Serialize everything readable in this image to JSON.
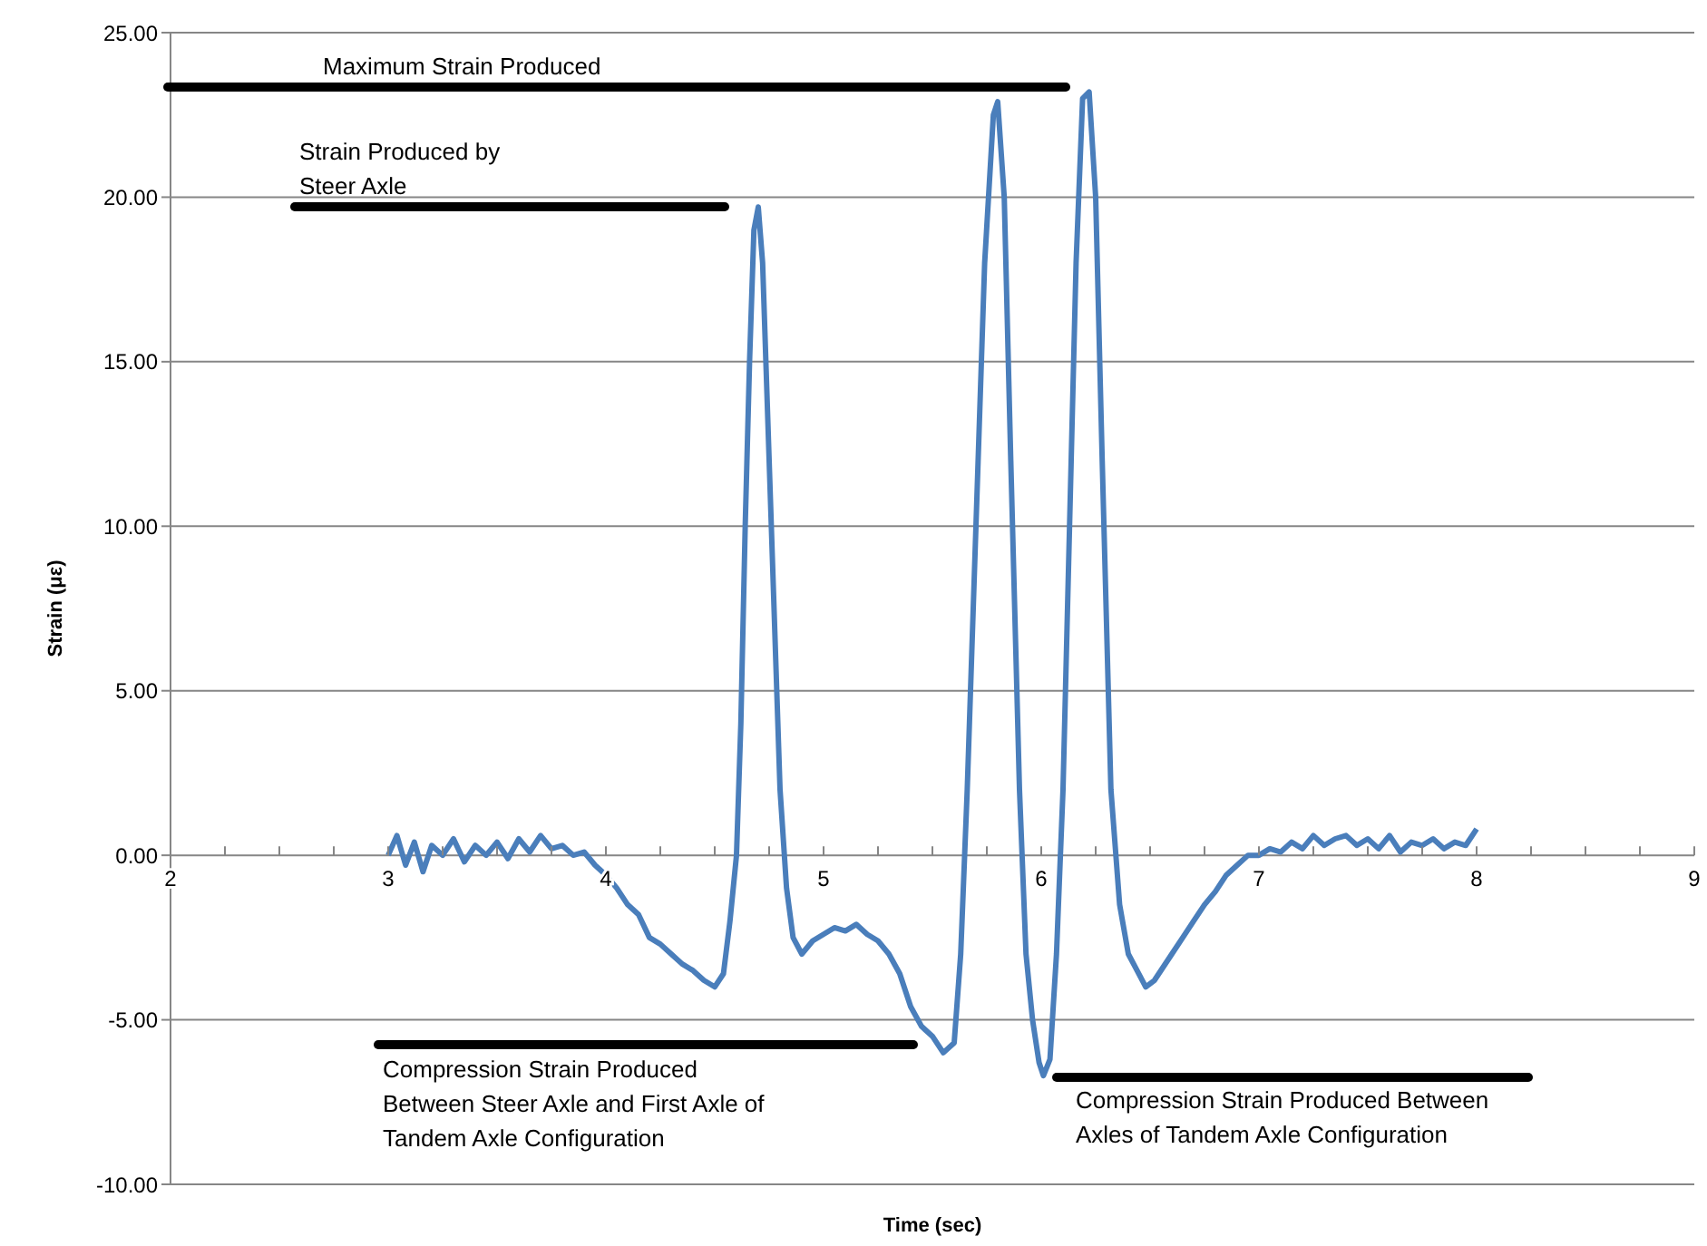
{
  "chart_data": {
    "type": "line",
    "xlabel": "Time (sec)",
    "ylabel": "Strain (με)",
    "x": [
      3,
      3.04,
      3.08,
      3.12,
      3.16,
      3.2,
      3.25,
      3.3,
      3.35,
      3.4,
      3.45,
      3.5,
      3.55,
      3.6,
      3.65,
      3.7,
      3.75,
      3.8,
      3.85,
      3.9,
      3.95,
      4,
      4.05,
      4.1,
      4.15,
      4.2,
      4.25,
      4.3,
      4.35,
      4.4,
      4.45,
      4.5,
      4.54,
      4.57,
      4.6,
      4.62,
      4.64,
      4.66,
      4.68,
      4.7,
      4.72,
      4.74,
      4.77,
      4.8,
      4.83,
      4.86,
      4.9,
      4.95,
      5,
      5.05,
      5.1,
      5.15,
      5.2,
      5.25,
      5.3,
      5.35,
      5.4,
      5.45,
      5.5,
      5.55,
      5.6,
      5.63,
      5.66,
      5.7,
      5.74,
      5.78,
      5.8,
      5.83,
      5.86,
      5.9,
      5.93,
      5.96,
      5.99,
      6.01,
      6.04,
      6.07,
      6.1,
      6.13,
      6.16,
      6.19,
      6.22,
      6.25,
      6.28,
      6.32,
      6.36,
      6.4,
      6.44,
      6.48,
      6.52,
      6.56,
      6.6,
      6.65,
      6.7,
      6.75,
      6.8,
      6.85,
      6.9,
      6.95,
      7,
      7.05,
      7.1,
      7.15,
      7.2,
      7.25,
      7.3,
      7.35,
      7.4,
      7.45,
      7.5,
      7.55,
      7.6,
      7.65,
      7.7,
      7.75,
      7.8,
      7.85,
      7.9,
      7.95,
      8
    ],
    "series": [
      {
        "color": "#4a7ebb",
        "values": [
          0,
          0.6,
          -0.3,
          0.4,
          -0.5,
          0.3,
          0,
          0.5,
          -0.2,
          0.3,
          0,
          0.4,
          -0.1,
          0.5,
          0.1,
          0.6,
          0.2,
          0.3,
          0,
          0.1,
          -0.3,
          -0.6,
          -1,
          -1.5,
          -1.8,
          -2.5,
          -2.7,
          -3,
          -3.3,
          -3.5,
          -3.8,
          -4,
          -3.6,
          -2,
          0,
          4,
          10,
          15,
          19,
          19.7,
          18,
          14,
          8,
          2,
          -1,
          -2.5,
          -3,
          -2.6,
          -2.4,
          -2.2,
          -2.3,
          -2.1,
          -2.4,
          -2.6,
          -3,
          -3.6,
          -4.6,
          -5.2,
          -5.5,
          -6,
          -5.7,
          -3,
          2,
          10,
          18,
          22.5,
          22.9,
          20,
          12,
          2,
          -3,
          -5,
          -6.3,
          -6.7,
          -6.2,
          -3,
          2,
          10,
          18,
          23,
          23.2,
          20,
          12,
          2,
          -1.5,
          -3,
          -3.5,
          -4,
          -3.8,
          -3.4,
          -3,
          -2.5,
          -2,
          -1.5,
          -1.1,
          -0.6,
          -0.3,
          0,
          0,
          0.2,
          0.1,
          0.4,
          0.2,
          0.6,
          0.3,
          0.5,
          0.6,
          0.3,
          0.5,
          0.2,
          0.6,
          0.1,
          0.4,
          0.3,
          0.5,
          0.2,
          0.4,
          0.3,
          0.8
        ]
      }
    ],
    "xlim": [
      2,
      9
    ],
    "xticks": [
      2,
      {
        "value": 2.25,
        "label": null
      },
      {
        "value": 2.5,
        "label": null
      },
      {
        "value": 2.75,
        "label": null
      },
      3,
      {
        "value": 3.25,
        "label": null
      },
      {
        "value": 3.5,
        "label": null
      },
      {
        "value": 3.75,
        "label": null
      },
      4,
      {
        "value": 4.25,
        "label": null
      },
      {
        "value": 4.5,
        "label": null
      },
      {
        "value": 4.75,
        "label": null
      },
      5,
      {
        "value": 5.25,
        "label": null
      },
      {
        "value": 5.5,
        "label": null
      },
      {
        "value": 5.75,
        "label": null
      },
      6,
      {
        "value": 6.25,
        "label": null
      },
      {
        "value": 6.5,
        "label": null
      },
      {
        "value": 6.75,
        "label": null
      },
      7,
      {
        "value": 7.25,
        "label": null
      },
      {
        "value": 7.5,
        "label": null
      },
      {
        "value": 7.75,
        "label": null
      },
      8,
      {
        "value": 8.25,
        "label": null
      },
      {
        "value": 8.5,
        "label": null
      },
      {
        "value": 8.75,
        "label": null
      },
      9
    ],
    "ylim": [
      -10,
      25
    ],
    "yticks": [
      {
        "value": -10,
        "label": "-10.00"
      },
      {
        "value": -5,
        "label": "-5.00"
      },
      {
        "value": 0,
        "label": "0.00"
      },
      {
        "value": 5,
        "label": "5.00"
      },
      {
        "value": 10,
        "label": "10.00"
      },
      {
        "value": 15,
        "label": "15.00"
      },
      {
        "value": 20,
        "label": "20.00"
      },
      {
        "value": 25,
        "label": "25.00"
      }
    ],
    "grid": "y",
    "legend": false,
    "marker": "none",
    "line_style": "solid",
    "annotations": [
      "Maximum Strain Produced",
      "Strain Produced by\nSteer Axle",
      "Compression Strain Produced\nBetween Steer Axle and First Axle of\nTandem Axle Configuration",
      "Compression Strain Produced Between\nAxles of Tandem Axle Configuration"
    ]
  }
}
